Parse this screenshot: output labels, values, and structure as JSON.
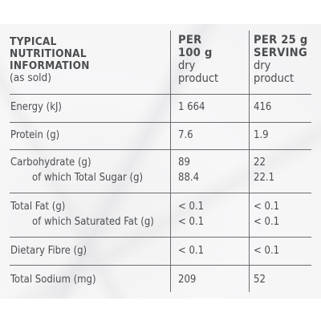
{
  "header": {
    "title_lines": [
      "TYPICAL",
      "NUTRITIONAL",
      "INFORMATION"
    ],
    "subtitle": "(as sold)",
    "col_per100_lines": [
      "PER",
      "100 g"
    ],
    "col_per100_sub_lines": [
      "dry",
      "product"
    ],
    "col_serving_lines": [
      "PER 25 g",
      "SERVING"
    ],
    "col_serving_sub_lines": [
      "dry",
      "product"
    ]
  },
  "rows": [
    {
      "label": "Energy (kJ)",
      "per100": "1 664",
      "serving": "416"
    },
    {
      "label": "Protein (g)",
      "per100": "7.6",
      "serving": "1.9"
    },
    {
      "label": "Carbohydrate (g)",
      "per100": "89",
      "serving": "22"
    },
    {
      "label": "of which Total Sugar (g)",
      "per100": "88.4",
      "serving": "22.1"
    },
    {
      "label": "Total Fat (g)",
      "per100": "< 0.1",
      "serving": "< 0.1"
    },
    {
      "label": "of which Saturated Fat (g)",
      "per100": "< 0.1",
      "serving": "< 0.1"
    },
    {
      "label": "Dietary Fibre (g)",
      "per100": "< 0.1",
      "serving": "< 0.1"
    },
    {
      "label": "Total Sodium (mg)",
      "per100": "209",
      "serving": "52"
    }
  ]
}
